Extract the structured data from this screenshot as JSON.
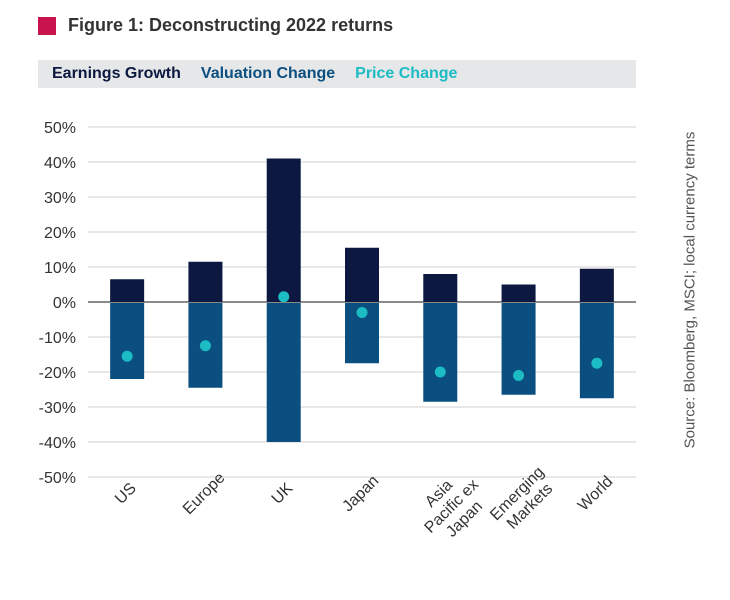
{
  "figure": {
    "title": "Figure 1: Deconstructing 2022 returns",
    "marker_color": "#c8144d",
    "source": "Source: Bloomberg, MSCI; local currency terms"
  },
  "legend": [
    {
      "label": "Earnings Growth",
      "color": "#0c1840"
    },
    {
      "label": "Valuation Change",
      "color": "#0b4f80"
    },
    {
      "label": "Price Change",
      "color": "#1cbcc4"
    }
  ],
  "chart_data": {
    "type": "bar",
    "stacked": true,
    "categories": [
      [
        "US"
      ],
      [
        "Europe"
      ],
      [
        "UK"
      ],
      [
        "Japan"
      ],
      [
        "Asia",
        "Pacific ex",
        "Japan"
      ],
      [
        "Emerging",
        "Markets"
      ],
      [
        "World"
      ]
    ],
    "series": [
      {
        "name": "Earnings Growth",
        "type": "bar",
        "values": [
          6.5,
          11.5,
          41,
          15.5,
          8,
          5,
          9.5
        ],
        "color": "#0c1840"
      },
      {
        "name": "Valuation Change",
        "type": "bar",
        "values": [
          -22,
          -24.5,
          -40,
          -17.5,
          -28.5,
          -26.5,
          -27.5
        ],
        "color": "#0b4f80"
      },
      {
        "name": "Price Change",
        "type": "scatter",
        "values": [
          -15.5,
          -12.5,
          1.5,
          -3,
          -20,
          -21,
          -17.5
        ],
        "color": "#1cbcc4"
      }
    ],
    "yaxis": {
      "ylim": [
        -50,
        50
      ],
      "ticks": [
        50,
        40,
        30,
        20,
        10,
        0,
        -10,
        -20,
        -30,
        -40,
        -50
      ],
      "tick_labels": [
        "50%",
        "40%",
        "30%",
        "20%",
        "10%",
        "0%",
        "-10%",
        "-20%",
        "-30%",
        "-40%",
        "-50%"
      ]
    },
    "grid": true,
    "legend_position": "top"
  }
}
